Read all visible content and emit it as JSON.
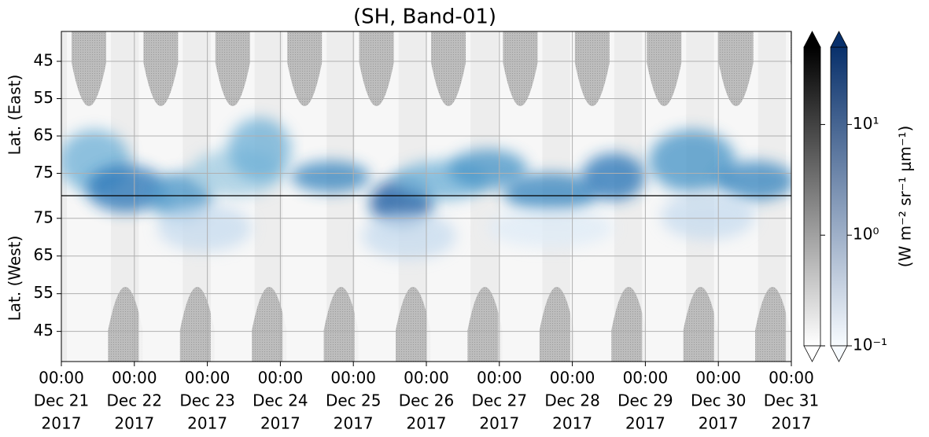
{
  "chart_data": {
    "type": "heatmap",
    "title": "(SH, Band-01)",
    "east_axis": {
      "label": "Lat. (East)",
      "ylim": [
        81,
        37
      ],
      "yticks": [
        45,
        55,
        65,
        75
      ]
    },
    "west_axis": {
      "label": "Lat. (West)",
      "ylim": [
        81,
        37
      ],
      "yticks": [
        75,
        65,
        55,
        45
      ]
    },
    "xlim": [
      "2017-12-21T00:00",
      "2017-12-31T00:00"
    ],
    "xticks": [
      {
        "value": "2017-12-21T00:00",
        "label": [
          "00:00",
          "Dec 21",
          "2017"
        ]
      },
      {
        "value": "2017-12-22T00:00",
        "label": [
          "00:00",
          "Dec 22",
          "2017"
        ]
      },
      {
        "value": "2017-12-23T00:00",
        "label": [
          "00:00",
          "Dec 23",
          "2017"
        ]
      },
      {
        "value": "2017-12-24T00:00",
        "label": [
          "00:00",
          "Dec 24",
          "2017"
        ]
      },
      {
        "value": "2017-12-25T00:00",
        "label": [
          "00:00",
          "Dec 25",
          "2017"
        ]
      },
      {
        "value": "2017-12-26T00:00",
        "label": [
          "00:00",
          "Dec 26",
          "2017"
        ]
      },
      {
        "value": "2017-12-27T00:00",
        "label": [
          "00:00",
          "Dec 27",
          "2017"
        ]
      },
      {
        "value": "2017-12-28T00:00",
        "label": [
          "00:00",
          "Dec 28",
          "2017"
        ]
      },
      {
        "value": "2017-12-29T00:00",
        "label": [
          "00:00",
          "Dec 29",
          "2017"
        ]
      },
      {
        "value": "2017-12-30T00:00",
        "label": [
          "00:00",
          "Dec 30",
          "2017"
        ]
      },
      {
        "value": "2017-12-31T00:00",
        "label": [
          "00:00",
          "Dec 31",
          "2017"
        ]
      }
    ],
    "grid": true,
    "colorbar": {
      "label": "(W m⁻² sr⁻¹ μm⁻¹)",
      "log": true,
      "clim": [
        0.1,
        50
      ],
      "ticks": [
        {
          "value": 0.1,
          "label": "10⁻¹"
        },
        {
          "value": 1,
          "label": "10⁰"
        },
        {
          "value": 10,
          "label": "10¹"
        }
      ],
      "colormaps": [
        [
          "#ffffff",
          "#000000"
        ],
        [
          "#f7fbff",
          "#08306b"
        ]
      ]
    }
  }
}
